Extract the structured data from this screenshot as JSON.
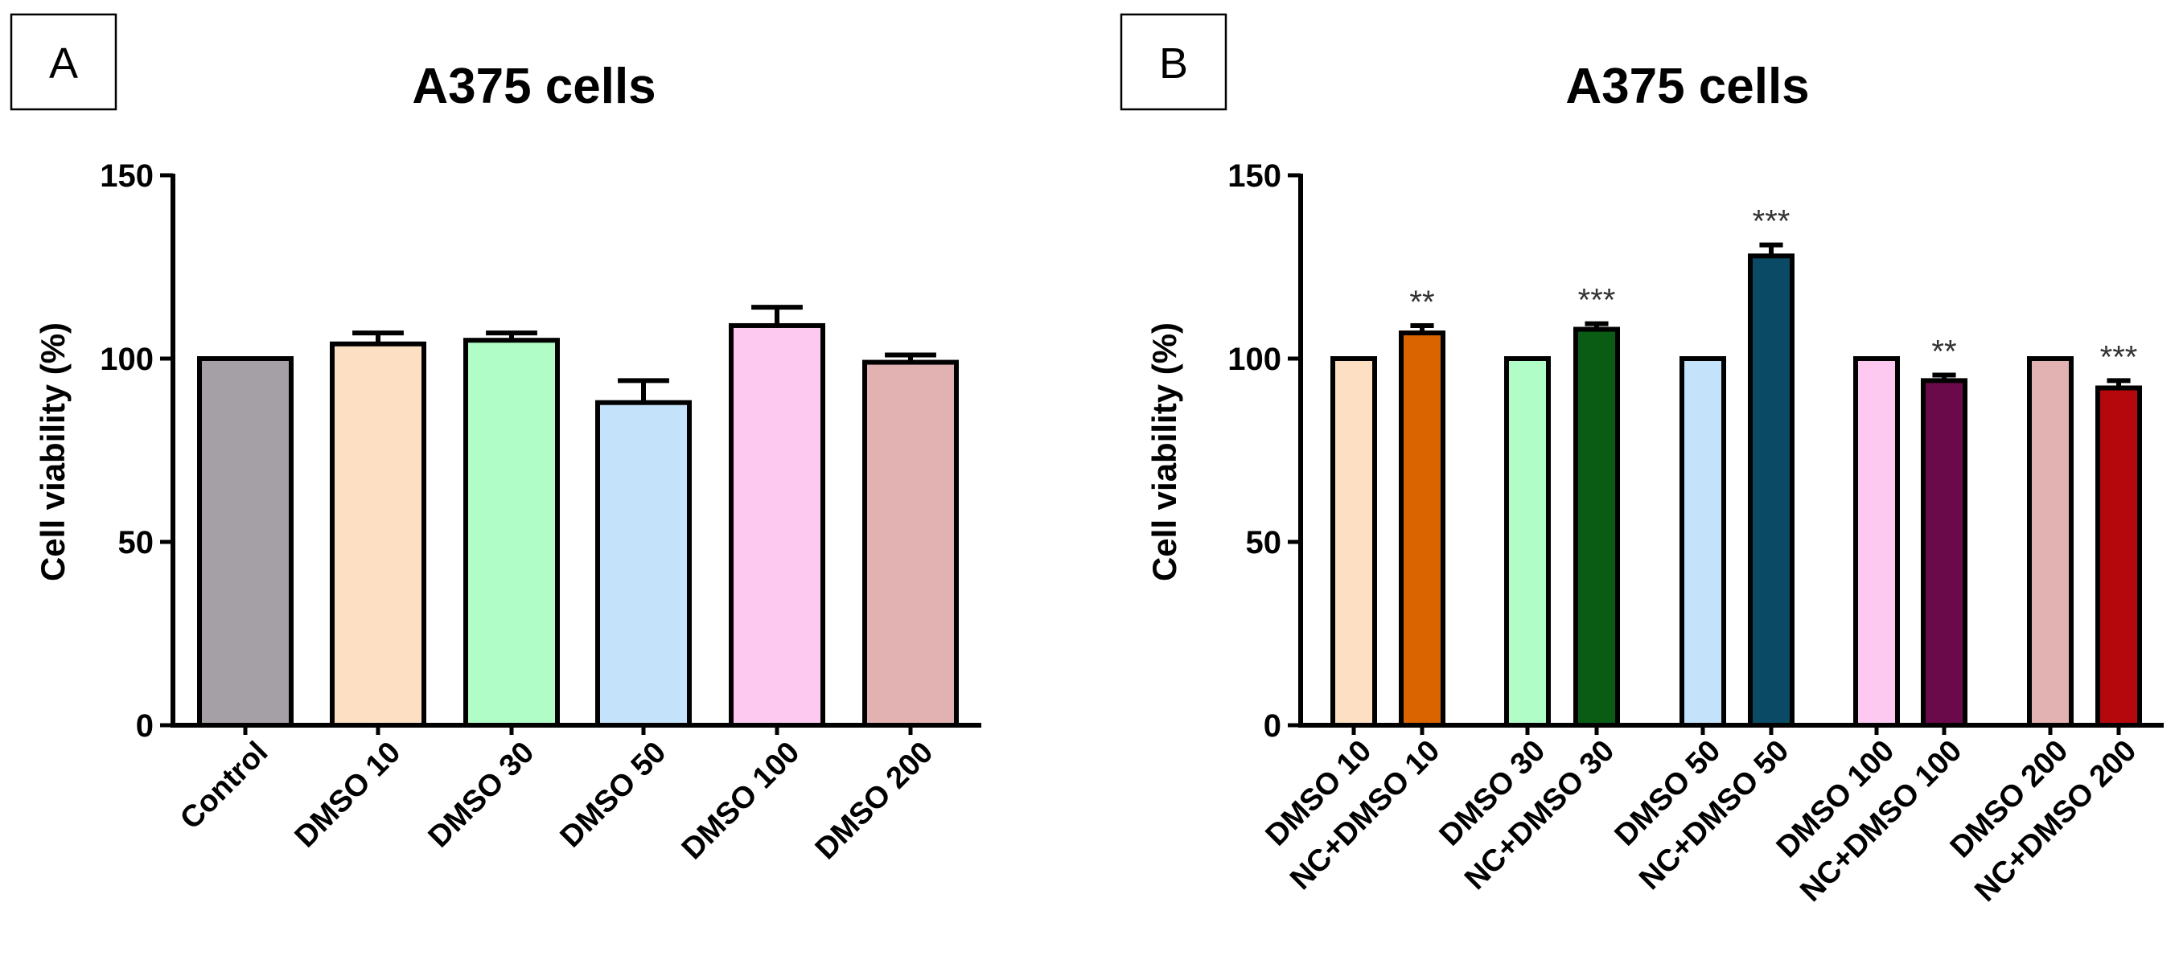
{
  "chart_data": [
    {
      "panel_label": "A",
      "type": "bar",
      "title": "A375 cells",
      "ylabel": "Cell viability (%)",
      "xlabel": "",
      "ylim": [
        0,
        150
      ],
      "yticks": [
        0,
        50,
        100,
        150
      ],
      "categories": [
        "Control",
        "DMSO 10",
        "DMSO 30",
        "DMSO 50",
        "DMSO 100",
        "DMSO 200"
      ],
      "values": [
        100,
        104,
        105,
        88,
        109,
        99
      ],
      "errors": [
        0,
        3,
        2,
        6,
        5,
        2
      ],
      "colors": [
        "#a5a0a6",
        "#fde0c3",
        "#b0fdc8",
        "#c5e2fb",
        "#fdc9f1",
        "#e2b2b2"
      ],
      "significance": [
        "",
        "",
        "",
        "",
        "",
        ""
      ],
      "grid": false,
      "legend": "none"
    },
    {
      "panel_label": "B",
      "type": "bar",
      "title": "A375 cells",
      "ylabel": "Cell viability (%)",
      "xlabel": "",
      "ylim": [
        0,
        150
      ],
      "yticks": [
        0,
        50,
        100,
        150
      ],
      "categories": [
        "DMSO 10",
        "NC+DMSO 10",
        "DMSO 30",
        "NC+DMSO 30",
        "DMSO 50",
        "NC+DMSO 50",
        "DMSO 100",
        "NC+DMSO 100",
        "DMSO 200",
        "NC+DMSO 200"
      ],
      "values": [
        100,
        107,
        100,
        108,
        100,
        128,
        100,
        94,
        100,
        92
      ],
      "errors": [
        0,
        2,
        0,
        1.5,
        0,
        3,
        0,
        1.5,
        0,
        2
      ],
      "colors": [
        "#fde0c3",
        "#d96400",
        "#b0fdc8",
        "#0a5b14",
        "#c5e2fb",
        "#0b4a64",
        "#fdc9f1",
        "#6a0a4a",
        "#e2b2b2",
        "#b5080d"
      ],
      "significance": [
        "",
        "**",
        "",
        "***",
        "",
        "***",
        "",
        "**",
        "",
        "***"
      ],
      "grid": false,
      "legend": "none"
    }
  ]
}
